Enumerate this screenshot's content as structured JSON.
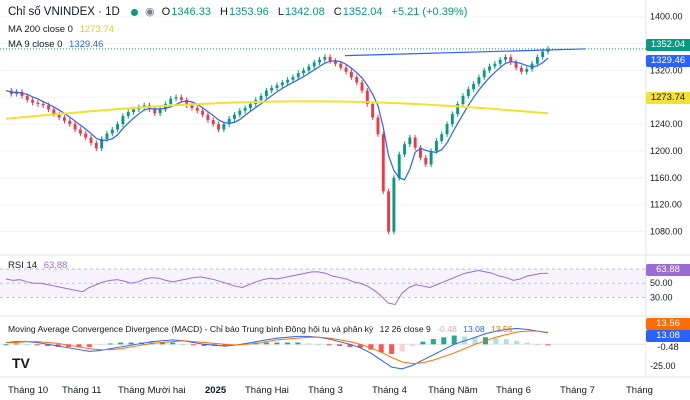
{
  "header": {
    "title": "Chỉ số VNINDEX · 1D",
    "open_label": "O",
    "open": "1346.33",
    "high_label": "H",
    "high": "1353.96",
    "low_label": "L",
    "low": "1342.08",
    "close_label": "C",
    "close": "1352.04",
    "change": "+5.21 (+0.39%)"
  },
  "ma200": {
    "label": "MA 200 close 0",
    "value": "1273.74",
    "color": "#f2e131"
  },
  "ma9": {
    "label": "MA 9 close 0",
    "value": "1329.46",
    "color": "#2962ff"
  },
  "rsi": {
    "label": "RSI 14",
    "value": "63.88",
    "color": "#9c6bd6"
  },
  "macd": {
    "label": "Moving Average Convergence Divergence (MACD) - Chỉ báo Trung bình Động hội tụ và phân kỳ",
    "params": "12 26 close 9",
    "hist_value": "-0.48",
    "macd_value": "13.08",
    "signal_value": "13.56"
  },
  "price_tags": {
    "last": "1352.04",
    "ma9": "1329.46",
    "ma200": "1273.74"
  },
  "colors": {
    "up": "#089981",
    "down": "#f23645",
    "macd": "#2962ff",
    "signal": "#ff6d00",
    "trendline": "#2962ff",
    "rsi_band": "#9c6bd6"
  },
  "chart_data": {
    "type": "candlestick",
    "price_axis": {
      "ticks": [
        1080,
        1120,
        1160,
        1200,
        1240,
        1280,
        1320,
        1360,
        1400
      ],
      "range": [
        1060,
        1410
      ]
    },
    "rsi_axis": {
      "ticks": [
        70,
        50,
        30
      ],
      "range": [
        15,
        80
      ]
    },
    "macd_axis": {
      "ticks": [
        25,
        0,
        -25
      ],
      "range": [
        -35,
        30
      ]
    },
    "time_axis": [
      "Tháng 10",
      "Tháng 11",
      "Tháng Mười hai",
      "2025",
      "Tháng Hai",
      "Tháng 3",
      "Tháng 4",
      "Tháng Năm",
      "Tháng 6",
      "Tháng 7",
      "Tháng"
    ],
    "price_points": [
      1290,
      1285,
      1288,
      1282,
      1276,
      1272,
      1270,
      1268,
      1262,
      1255,
      1250,
      1245,
      1240,
      1232,
      1226,
      1220,
      1212,
      1204,
      1218,
      1226,
      1232,
      1240,
      1252,
      1258,
      1262,
      1265,
      1268,
      1262,
      1256,
      1262,
      1270,
      1278,
      1280,
      1276,
      1268,
      1264,
      1260,
      1254,
      1246,
      1240,
      1232,
      1240,
      1248,
      1254,
      1260,
      1264,
      1270,
      1276,
      1282,
      1290,
      1294,
      1298,
      1302,
      1306,
      1310,
      1316,
      1320,
      1326,
      1332,
      1336,
      1340,
      1334,
      1330,
      1324,
      1318,
      1310,
      1302,
      1290,
      1270,
      1250,
      1225,
      1140,
      1080,
      1160,
      1195,
      1210,
      1220,
      1205,
      1190,
      1180,
      1200,
      1215,
      1225,
      1240,
      1255,
      1270,
      1282,
      1292,
      1300,
      1310,
      1320,
      1326,
      1330,
      1336,
      1340,
      1332,
      1324,
      1318,
      1322,
      1330,
      1340,
      1348,
      1352
    ],
    "rsi_points": [
      56,
      54,
      55,
      52,
      50,
      50,
      48,
      46,
      44,
      42,
      40,
      38,
      44,
      48,
      52,
      54,
      55,
      53,
      50,
      52,
      56,
      58,
      57,
      54,
      52,
      54,
      56,
      58,
      59,
      57,
      55,
      52,
      49,
      46,
      44,
      48,
      52,
      55,
      57,
      56,
      58,
      60,
      62,
      64,
      66,
      66,
      64,
      60,
      58,
      56,
      52,
      50,
      46,
      40,
      32,
      22,
      20,
      36,
      44,
      48,
      46,
      44,
      48,
      52,
      56,
      60,
      64,
      66,
      68,
      66,
      64,
      60,
      58,
      54,
      56,
      60,
      62,
      64,
      63.88
    ],
    "macd_line": [
      2,
      3,
      3,
      2,
      0,
      -2,
      -4,
      -6,
      -8,
      -7,
      -5,
      -3,
      -1,
      1,
      3,
      4,
      5,
      4,
      2,
      0,
      -1,
      -2,
      -1,
      1,
      3,
      5,
      7,
      8,
      9,
      9,
      8,
      6,
      3,
      0,
      -4,
      -10,
      -18,
      -26,
      -28,
      -24,
      -18,
      -12,
      -6,
      0,
      4,
      8,
      12,
      15,
      17,
      18,
      17,
      15,
      13.08
    ],
    "signal_line": [
      2,
      2,
      3,
      3,
      2,
      1,
      -1,
      -3,
      -5,
      -6,
      -6,
      -5,
      -3,
      -1,
      1,
      2,
      3,
      4,
      3,
      2,
      1,
      0,
      -1,
      0,
      1,
      3,
      5,
      6,
      7,
      8,
      8,
      7,
      5,
      3,
      0,
      -4,
      -9,
      -15,
      -20,
      -22,
      -21,
      -18,
      -14,
      -10,
      -5,
      0,
      4,
      8,
      11,
      14,
      15,
      15,
      13.56
    ]
  }
}
